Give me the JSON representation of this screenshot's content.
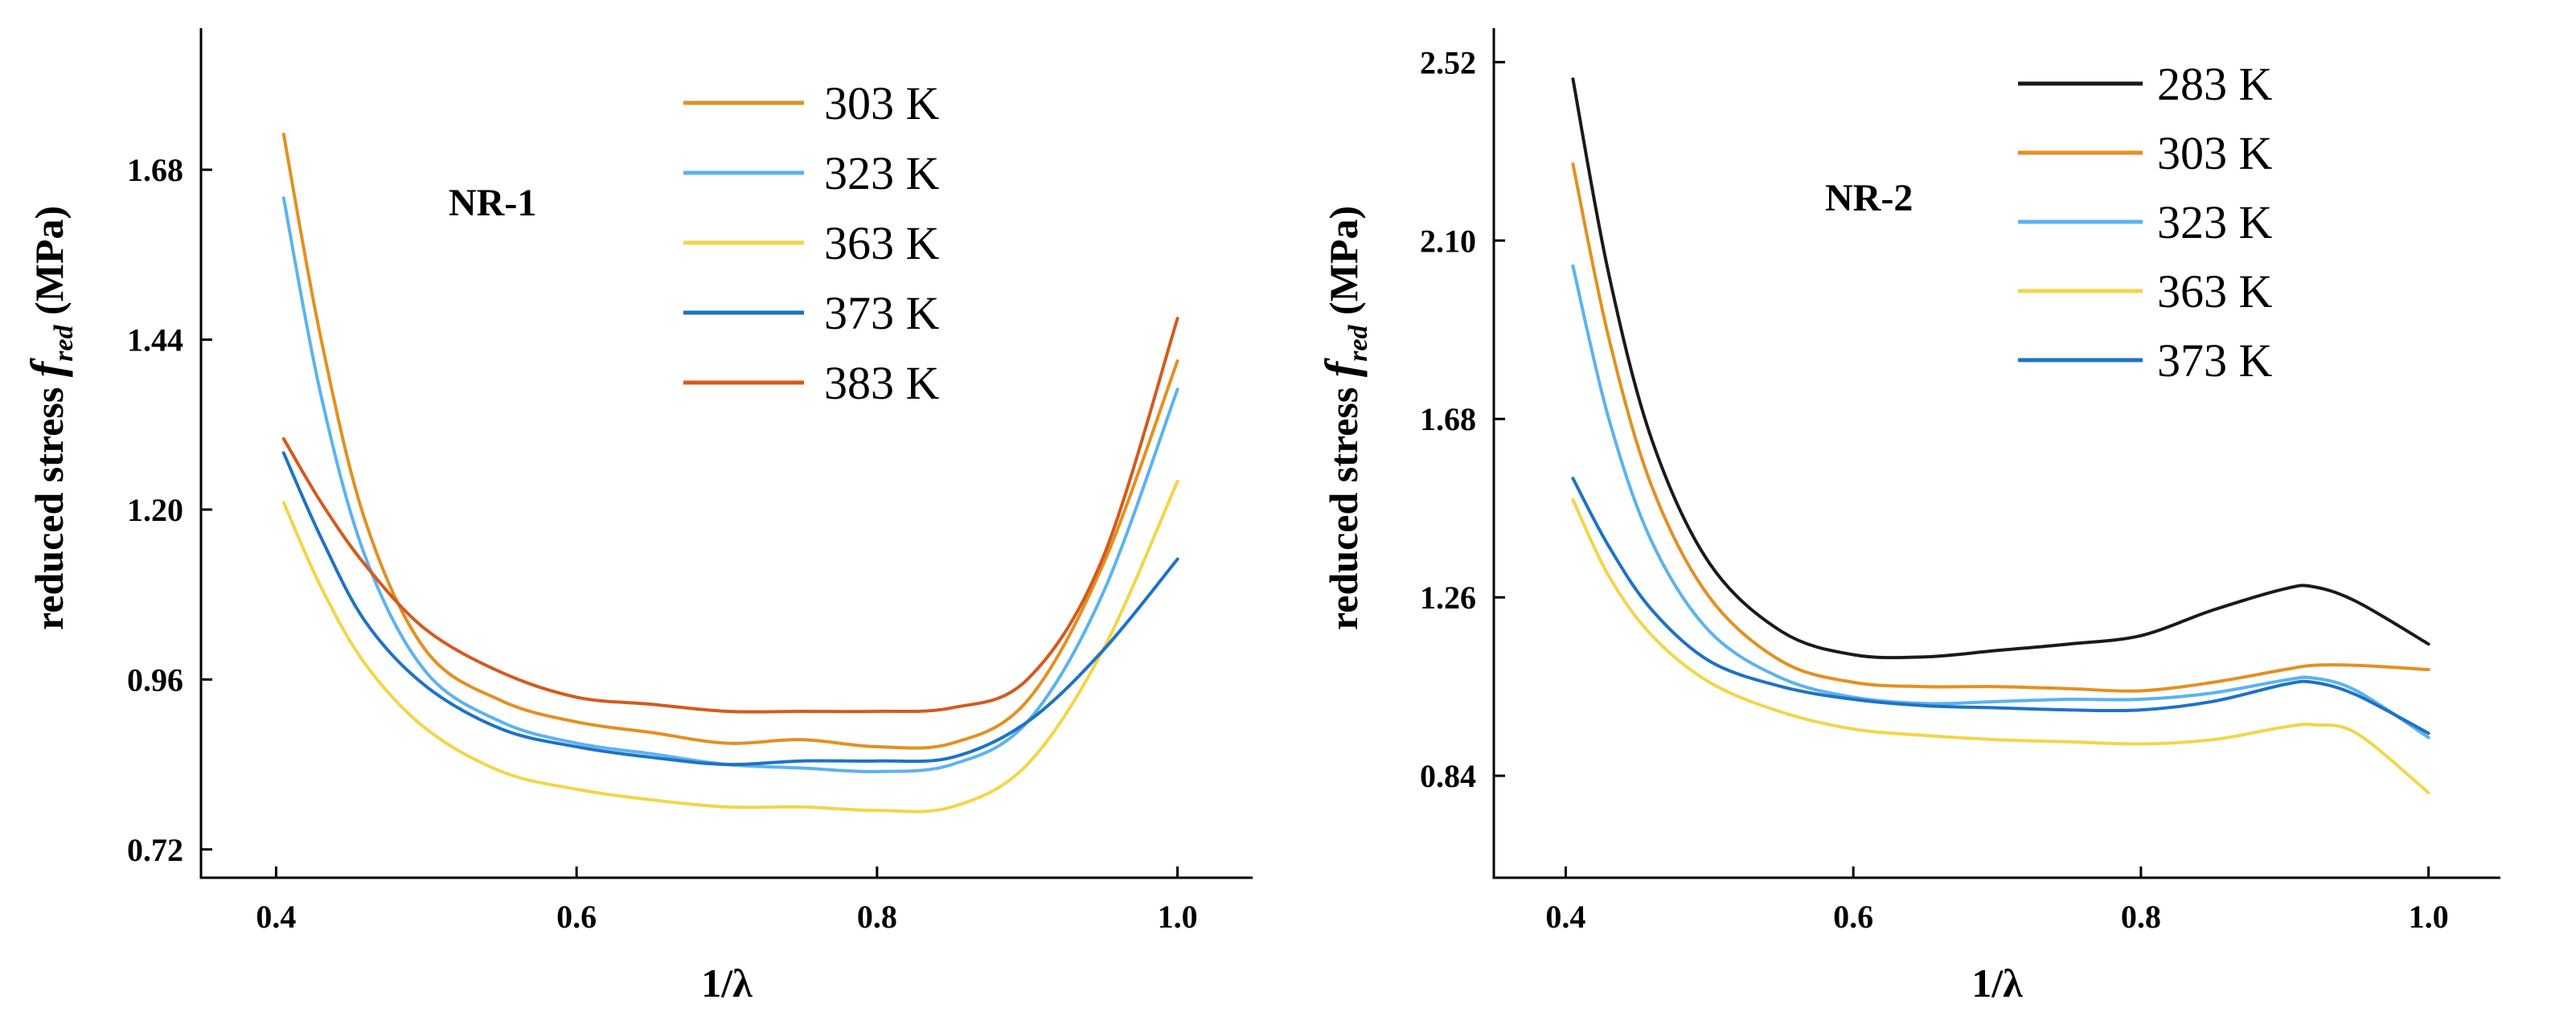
{
  "chart_data": [
    {
      "type": "line",
      "panel_label": "NR-1",
      "xlabel": "1/λ",
      "ylabel": {
        "main": "reduced stress ",
        "symbol": "f",
        "subscript": "red",
        "units": " (MPa)"
      },
      "xlim": [
        0.35,
        1.05
      ],
      "ylim": [
        0.68,
        1.88
      ],
      "xticks": [
        0.4,
        0.6,
        0.8,
        1.0
      ],
      "xtick_labels": [
        "0.4",
        "0.6",
        "0.8",
        "1.0"
      ],
      "yticks": [
        0.72,
        0.96,
        1.2,
        1.44,
        1.68
      ],
      "ytick_labels": [
        "0.72",
        "0.96",
        "1.20",
        "1.44",
        "1.68"
      ],
      "legend_position": "top-right",
      "series": [
        {
          "name": "303 K",
          "color": "#E39020",
          "x": [
            0.405,
            0.43,
            0.46,
            0.5,
            0.55,
            0.6,
            0.65,
            0.7,
            0.75,
            0.8,
            0.85,
            0.9,
            0.95,
            1.0
          ],
          "y": [
            1.73,
            1.44,
            1.18,
            1.0,
            0.93,
            0.9,
            0.885,
            0.87,
            0.875,
            0.865,
            0.87,
            0.93,
            1.12,
            1.41
          ]
        },
        {
          "name": "323 K",
          "color": "#5BB3EE",
          "x": [
            0.405,
            0.43,
            0.46,
            0.5,
            0.55,
            0.6,
            0.65,
            0.7,
            0.75,
            0.8,
            0.85,
            0.9,
            0.95,
            1.0
          ],
          "y": [
            1.64,
            1.36,
            1.13,
            0.97,
            0.9,
            0.87,
            0.855,
            0.84,
            0.835,
            0.83,
            0.84,
            0.9,
            1.08,
            1.37
          ]
        },
        {
          "name": "363 K",
          "color": "#F3D548",
          "x": [
            0.405,
            0.43,
            0.46,
            0.5,
            0.55,
            0.6,
            0.65,
            0.7,
            0.75,
            0.8,
            0.85,
            0.9,
            0.95,
            1.0
          ],
          "y": [
            1.21,
            1.09,
            0.98,
            0.89,
            0.83,
            0.805,
            0.79,
            0.78,
            0.78,
            0.775,
            0.78,
            0.84,
            1.0,
            1.24
          ]
        },
        {
          "name": "373 K",
          "color": "#1E72C6",
          "x": [
            0.405,
            0.43,
            0.46,
            0.5,
            0.55,
            0.6,
            0.65,
            0.7,
            0.75,
            0.8,
            0.85,
            0.9,
            0.95,
            1.0
          ],
          "y": [
            1.28,
            1.16,
            1.04,
            0.95,
            0.89,
            0.865,
            0.85,
            0.84,
            0.845,
            0.845,
            0.85,
            0.9,
            1.0,
            1.13
          ]
        },
        {
          "name": "383 K",
          "color": "#D45A1E",
          "x": [
            0.405,
            0.43,
            0.46,
            0.5,
            0.55,
            0.6,
            0.65,
            0.7,
            0.75,
            0.8,
            0.85,
            0.9,
            0.95,
            1.0
          ],
          "y": [
            1.3,
            1.21,
            1.12,
            1.03,
            0.97,
            0.935,
            0.925,
            0.915,
            0.915,
            0.915,
            0.92,
            0.96,
            1.13,
            1.47
          ]
        }
      ]
    },
    {
      "type": "line",
      "panel_label": "NR-2",
      "xlabel": "1/λ",
      "ylabel": {
        "main": "reduced stress ",
        "symbol": "f",
        "subscript": "red",
        "units": " (MPa)"
      },
      "xlim": [
        0.35,
        1.05
      ],
      "ylim": [
        0.6,
        2.6
      ],
      "xticks": [
        0.4,
        0.6,
        0.8,
        1.0
      ],
      "xtick_labels": [
        "0.4",
        "0.6",
        "0.8",
        "1.0"
      ],
      "yticks": [
        0.84,
        1.26,
        1.68,
        2.1,
        2.52
      ],
      "ytick_labels": [
        "0.84",
        "1.26",
        "1.68",
        "2.10",
        "2.52"
      ],
      "legend_position": "top-right",
      "series": [
        {
          "name": "283 K",
          "color": "#1A1A1A",
          "x": [
            0.405,
            0.43,
            0.46,
            0.5,
            0.55,
            0.6,
            0.65,
            0.7,
            0.75,
            0.8,
            0.85,
            0.9,
            0.92,
            0.95,
            1.0
          ],
          "y": [
            2.48,
            2.02,
            1.63,
            1.34,
            1.18,
            1.125,
            1.12,
            1.135,
            1.15,
            1.17,
            1.23,
            1.28,
            1.285,
            1.25,
            1.15
          ]
        },
        {
          "name": "303 K",
          "color": "#E39020",
          "x": [
            0.405,
            0.43,
            0.46,
            0.5,
            0.55,
            0.6,
            0.65,
            0.7,
            0.75,
            0.8,
            0.85,
            0.9,
            0.92,
            0.95,
            1.0
          ],
          "y": [
            2.28,
            1.87,
            1.52,
            1.26,
            1.11,
            1.06,
            1.05,
            1.05,
            1.045,
            1.04,
            1.06,
            1.09,
            1.1,
            1.1,
            1.09
          ]
        },
        {
          "name": "323 K",
          "color": "#5BB3EE",
          "x": [
            0.405,
            0.43,
            0.46,
            0.5,
            0.55,
            0.6,
            0.65,
            0.7,
            0.75,
            0.8,
            0.85,
            0.9,
            0.92,
            0.95,
            1.0
          ],
          "y": [
            2.04,
            1.68,
            1.39,
            1.18,
            1.07,
            1.025,
            1.01,
            1.015,
            1.02,
            1.02,
            1.035,
            1.065,
            1.07,
            1.04,
            0.93
          ]
        },
        {
          "name": "363 K",
          "color": "#F3D548",
          "x": [
            0.405,
            0.43,
            0.46,
            0.5,
            0.55,
            0.6,
            0.65,
            0.7,
            0.75,
            0.8,
            0.85,
            0.9,
            0.92,
            0.95,
            1.0
          ],
          "y": [
            1.49,
            1.31,
            1.17,
            1.06,
            0.99,
            0.95,
            0.935,
            0.925,
            0.92,
            0.915,
            0.925,
            0.955,
            0.96,
            0.94,
            0.8
          ]
        },
        {
          "name": "373 K",
          "color": "#1E72C6",
          "x": [
            0.405,
            0.43,
            0.46,
            0.5,
            0.55,
            0.6,
            0.65,
            0.7,
            0.75,
            0.8,
            0.85,
            0.9,
            0.92,
            0.95,
            1.0
          ],
          "y": [
            1.54,
            1.38,
            1.23,
            1.11,
            1.05,
            1.02,
            1.005,
            1.0,
            0.995,
            0.995,
            1.015,
            1.055,
            1.06,
            1.03,
            0.94
          ]
        }
      ]
    }
  ]
}
